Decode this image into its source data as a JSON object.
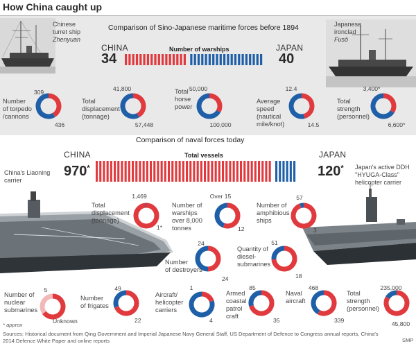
{
  "title": "How China caught up",
  "section1": {
    "title": "Comparison of Sino-Japanese maritime forces before 1894",
    "subtitle": "Number of warships",
    "china_label": "CHINA",
    "japan_label": "JAPAN",
    "china_value": "34",
    "japan_value": "40",
    "ship_left": {
      "line1": "Chinese",
      "line2": "turret ship",
      "name": "Zhenyuan"
    },
    "ship_right": {
      "line1": "Japanese",
      "line2": "ironclad",
      "name": "Fusō"
    }
  },
  "section2": {
    "title": "Comparison of naval forces today",
    "subtitle": "Total vessels",
    "china_label": "CHINA",
    "japan_label": "JAPAN",
    "china_value": "970",
    "japan_value": "120",
    "asterisk": "*",
    "carrier_left": "China's Liaoning carrier",
    "carrier_right": "Japan's active DDH \"HYUGA-Class\" helicopter carrier"
  },
  "approx_note": "* approx",
  "sources": "Sources: Historical document from Qing Government and Imperial Japanese Navy General Staff, US Department of Defence to Congress annual reports, China's 2014 Defence White Paper and online reports",
  "credit": "SMP",
  "colors": {
    "china": "#e03a3e",
    "japan": "#1f5fa8",
    "unknown": "#f2b8b8",
    "band": "#e9e9ea"
  },
  "chart_data": [
    {
      "type": "bar",
      "title": "Number of warships",
      "categories": [
        "China",
        "Japan"
      ],
      "values": [
        34,
        40
      ],
      "display": "unit-stripes"
    },
    {
      "type": "pie",
      "title": "Comparison of Sino-Japanese maritime forces before 1894",
      "charts": [
        {
          "label": "Number of torpedo /cannons",
          "china": 309,
          "japan": 436,
          "china_text": "309",
          "japan_text": "436"
        },
        {
          "label": "Total displacement (tonnage)",
          "china": 41800,
          "japan": 57448,
          "china_text": "41,800",
          "japan_text": "57,448"
        },
        {
          "label": "Total horse power",
          "china": 50000,
          "japan": 100000,
          "china_text": "50,000",
          "japan_text": "100,000"
        },
        {
          "label": "Average speed (nautical mile/knot)",
          "china": 12.4,
          "japan": 14.5,
          "china_text": "12.4",
          "japan_text": "14.5"
        },
        {
          "label": "Total strength (personnel)",
          "china": 3400,
          "japan": 6600,
          "china_text": "3,400*",
          "japan_text": "6,600*"
        }
      ]
    },
    {
      "type": "bar",
      "title": "Total vessels",
      "categories": [
        "China",
        "Japan"
      ],
      "values": [
        970,
        120
      ],
      "display": "unit-stripes"
    },
    {
      "type": "pie",
      "title": "Comparison of naval forces today",
      "charts": [
        {
          "label": "Total displacement (tonnage)",
          "china": 1469,
          "japan": 1,
          "china_text": "1,469",
          "japan_text": "1*"
        },
        {
          "label": "Number of warships over 8,000 tonnes",
          "china": 15,
          "japan": 12,
          "china_text": "Over 15",
          "japan_text": "12"
        },
        {
          "label": "Number of amphibious ships",
          "china": 57,
          "japan": 3,
          "china_text": "57",
          "japan_text": "3"
        },
        {
          "label": "Number of destroyers",
          "china": 24,
          "japan": 24,
          "china_text": "24",
          "japan_text": "24"
        },
        {
          "label": "Quantity of diesel-submarines",
          "china": 51,
          "japan": 18,
          "china_text": "51",
          "japan_text": "18"
        },
        {
          "label": "Number of nuclear submarines",
          "china": 5,
          "japan": 0,
          "china_text": "5",
          "japan_text": "Unknown",
          "japan_unknown": true
        },
        {
          "label": "Number of frigates",
          "china": 49,
          "japan": 22,
          "china_text": "49",
          "japan_text": "22"
        },
        {
          "label": "Aircraft/ helicopter carriers",
          "china": 1,
          "japan": 4,
          "china_text": "1",
          "japan_text": "4"
        },
        {
          "label": "Armed coastal patrol craft",
          "china": 85,
          "japan": 35,
          "china_text": "85",
          "japan_text": "35"
        },
        {
          "label": "Naval aircraft",
          "china": 468,
          "japan": 339,
          "china_text": "468",
          "japan_text": "339"
        },
        {
          "label": "Total strength (personnel)",
          "china": 235000,
          "japan": 45800,
          "china_text": "235,000",
          "japan_text": "45,800"
        }
      ]
    }
  ]
}
